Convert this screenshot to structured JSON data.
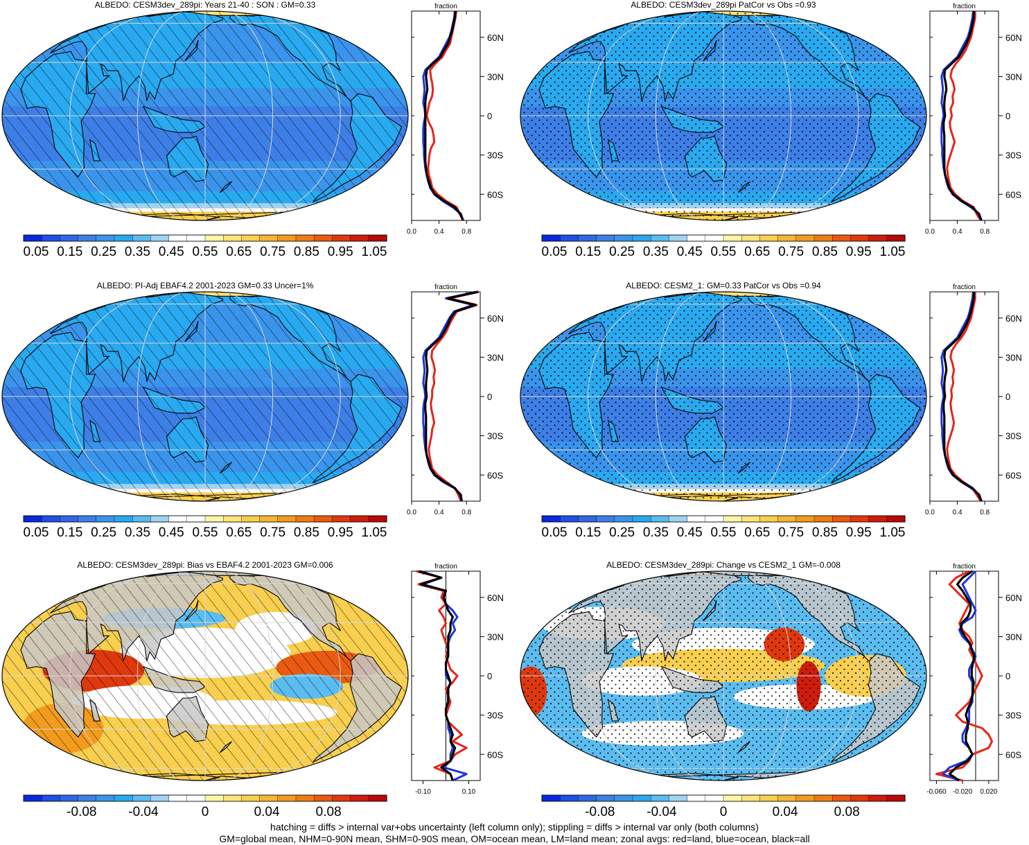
{
  "footer": {
    "line1": "hatching = diffs > internal var+obs uncertainty (left column only); stippling = diffs > internal var only (both columns)",
    "line2": "GM=global mean, NHM=0-90N mean, SHM=0-90S mean, OM=ocean mean, LM=land mean; zonal avgs: red=land, blue=ocean, black=all"
  },
  "colors": {
    "seq": [
      "#0a28e0",
      "#1f4fe6",
      "#3266e6",
      "#3d7fe6",
      "#3a94ec",
      "#29a9f0",
      "#5bbcf0",
      "#9ed3f2",
      "#ffffff",
      "#ffffff",
      "#fff5a8",
      "#fbe47a",
      "#f8cf4e",
      "#f4b634",
      "#f29b1e",
      "#ee7c14",
      "#ea5a10",
      "#e0380e",
      "#d01c0c",
      "#b80a08"
    ],
    "div": [
      "#0a28e0",
      "#1f4fe6",
      "#3266e6",
      "#3d7fe6",
      "#3a94ec",
      "#29a9f0",
      "#5bbcf0",
      "#9ed3f2",
      "#ffffff",
      "#ffffff",
      "#fff5a8",
      "#fbe47a",
      "#f8cf4e",
      "#f4b634",
      "#f29b1e",
      "#ee7c14",
      "#ea5a10",
      "#e0380e",
      "#d01c0c",
      "#b80a08"
    ],
    "land_line": "#e8231a",
    "ocean_line": "#1e33e0",
    "all_line": "#000000",
    "land_fill": "#c8c8c8"
  },
  "chart_data": [
    {
      "type": "heatmap",
      "title": "ALBEDO: CESM3dev_289pi: Years 21-40 : SON : GM=0.33",
      "pattern": "hatch",
      "colorbar_ticks": [
        "0.05",
        "0.15",
        "0.25",
        "0.35",
        "0.45",
        "0.55",
        "0.65",
        "0.75",
        "0.85",
        "0.95",
        "1.05"
      ],
      "profile": {
        "xlabel": "fraction",
        "xticks": [
          "0.0",
          "0.4",
          "0.8"
        ],
        "xlim": [
          0,
          1
        ],
        "ylim": [
          -80,
          80
        ],
        "yticks": [
          "60N",
          "30N",
          "0",
          "30S",
          "60S"
        ],
        "lat": [
          -80,
          -75,
          -70,
          -65,
          -60,
          -55,
          -50,
          -45,
          -40,
          -35,
          -30,
          -25,
          -20,
          -15,
          -10,
          -5,
          0,
          5,
          10,
          15,
          20,
          25,
          30,
          35,
          40,
          45,
          50,
          55,
          60,
          65,
          70,
          75,
          80
        ],
        "land": [
          0.75,
          0.7,
          0.66,
          0.5,
          0.38,
          0.3,
          0.28,
          0.25,
          0.24,
          0.25,
          0.26,
          0.28,
          0.33,
          0.32,
          0.3,
          0.25,
          0.22,
          0.24,
          0.26,
          0.3,
          0.31,
          0.3,
          0.28,
          0.27,
          0.35,
          0.45,
          0.5,
          0.56,
          0.58,
          0.6,
          0.62,
          0.64,
          0.65
        ],
        "ocean": [
          0.75,
          0.72,
          0.6,
          0.45,
          0.33,
          0.27,
          0.24,
          0.22,
          0.2,
          0.19,
          0.18,
          0.18,
          0.17,
          0.17,
          0.17,
          0.18,
          0.2,
          0.19,
          0.17,
          0.18,
          0.19,
          0.18,
          0.17,
          0.2,
          0.3,
          0.4,
          0.45,
          0.5,
          0.55,
          0.58,
          0.6,
          0.62,
          0.63
        ],
        "all": [
          0.75,
          0.71,
          0.63,
          0.47,
          0.34,
          0.28,
          0.25,
          0.22,
          0.21,
          0.2,
          0.2,
          0.2,
          0.2,
          0.2,
          0.2,
          0.2,
          0.2,
          0.2,
          0.2,
          0.21,
          0.23,
          0.22,
          0.21,
          0.22,
          0.31,
          0.42,
          0.47,
          0.53,
          0.56,
          0.59,
          0.61,
          0.63,
          0.64
        ]
      }
    },
    {
      "type": "heatmap",
      "title": "ALBEDO: CESM3dev_289pi PatCor vs Obs =0.93",
      "pattern": "stipple",
      "colorbar_ticks": [
        "0.05",
        "0.15",
        "0.25",
        "0.35",
        "0.45",
        "0.55",
        "0.65",
        "0.75",
        "0.85",
        "0.95",
        "1.05"
      ],
      "profile": {
        "xlabel": "fraction",
        "xticks": [
          "0.0",
          "0.4",
          "0.8"
        ],
        "xlim": [
          0,
          1
        ],
        "ylim": [
          -80,
          80
        ],
        "yticks": [
          "60N",
          "30N",
          "0",
          "30S",
          "60S"
        ],
        "lat": [
          -80,
          -75,
          -70,
          -65,
          -60,
          -55,
          -50,
          -45,
          -40,
          -35,
          -30,
          -25,
          -20,
          -15,
          -10,
          -5,
          0,
          5,
          10,
          15,
          20,
          25,
          30,
          35,
          40,
          45,
          50,
          55,
          60,
          65,
          70,
          75,
          80
        ],
        "land": [
          0.74,
          0.68,
          0.64,
          0.48,
          0.37,
          0.3,
          0.28,
          0.26,
          0.25,
          0.27,
          0.3,
          0.33,
          0.36,
          0.33,
          0.3,
          0.29,
          0.32,
          0.3,
          0.34,
          0.33,
          0.36,
          0.34,
          0.3,
          0.32,
          0.38,
          0.46,
          0.52,
          0.56,
          0.6,
          0.62,
          0.64,
          0.66,
          0.66
        ],
        "ocean": [
          0.75,
          0.72,
          0.6,
          0.45,
          0.33,
          0.27,
          0.24,
          0.22,
          0.2,
          0.19,
          0.18,
          0.18,
          0.17,
          0.17,
          0.17,
          0.18,
          0.2,
          0.19,
          0.17,
          0.18,
          0.19,
          0.18,
          0.17,
          0.2,
          0.3,
          0.4,
          0.45,
          0.5,
          0.55,
          0.58,
          0.6,
          0.62,
          0.63
        ],
        "all": [
          0.75,
          0.71,
          0.62,
          0.46,
          0.34,
          0.28,
          0.25,
          0.22,
          0.21,
          0.21,
          0.21,
          0.21,
          0.21,
          0.21,
          0.2,
          0.2,
          0.22,
          0.21,
          0.21,
          0.22,
          0.24,
          0.23,
          0.21,
          0.22,
          0.32,
          0.42,
          0.48,
          0.53,
          0.57,
          0.6,
          0.62,
          0.64,
          0.64
        ]
      }
    },
    {
      "type": "heatmap",
      "title": "ALBEDO: PI-Adj EBAF4.2 2001-2023 GM=0.33 Uncer=1%",
      "pattern": "hatch",
      "colorbar_ticks": [
        "0.05",
        "0.15",
        "0.25",
        "0.35",
        "0.45",
        "0.55",
        "0.65",
        "0.75",
        "0.85",
        "0.95",
        "1.05"
      ],
      "profile": {
        "xlabel": "fraction",
        "xticks": [
          "0.0",
          "0.4",
          "0.8"
        ],
        "xlim": [
          0,
          1
        ],
        "ylim": [
          -80,
          80
        ],
        "yticks": [
          "60N",
          "30N",
          "0",
          "30S",
          "60S"
        ],
        "lat": [
          -80,
          -75,
          -70,
          -65,
          -60,
          -55,
          -50,
          -45,
          -40,
          -35,
          -30,
          -25,
          -20,
          -15,
          -10,
          -5,
          0,
          5,
          10,
          15,
          20,
          25,
          30,
          35,
          40,
          45,
          50,
          55,
          60,
          65,
          70,
          75,
          80
        ],
        "land": [
          0.72,
          0.68,
          0.63,
          0.5,
          0.38,
          0.3,
          0.28,
          0.26,
          0.25,
          0.27,
          0.29,
          0.3,
          0.33,
          0.31,
          0.29,
          0.28,
          0.3,
          0.3,
          0.33,
          0.32,
          0.34,
          0.32,
          0.29,
          0.3,
          0.37,
          0.45,
          0.51,
          0.55,
          0.6,
          0.66,
          0.95,
          0.55,
          0.98
        ],
        "ocean": [
          0.73,
          0.72,
          0.62,
          0.45,
          0.33,
          0.27,
          0.24,
          0.22,
          0.2,
          0.19,
          0.18,
          0.18,
          0.17,
          0.17,
          0.17,
          0.18,
          0.2,
          0.19,
          0.17,
          0.18,
          0.19,
          0.18,
          0.17,
          0.2,
          0.3,
          0.4,
          0.45,
          0.5,
          0.55,
          0.62,
          0.9,
          0.5,
          0.95
        ],
        "all": [
          0.73,
          0.71,
          0.63,
          0.47,
          0.34,
          0.28,
          0.25,
          0.22,
          0.21,
          0.21,
          0.21,
          0.21,
          0.21,
          0.21,
          0.2,
          0.2,
          0.22,
          0.21,
          0.21,
          0.22,
          0.23,
          0.22,
          0.21,
          0.22,
          0.32,
          0.42,
          0.48,
          0.53,
          0.57,
          0.64,
          0.93,
          0.52,
          0.97
        ]
      }
    },
    {
      "type": "heatmap",
      "title": "ALBEDO: CESM2_1: GM=0.33 PatCor vs Obs =0.94",
      "pattern": "stipple",
      "colorbar_ticks": [
        "0.05",
        "0.15",
        "0.25",
        "0.35",
        "0.45",
        "0.55",
        "0.65",
        "0.75",
        "0.85",
        "0.95",
        "1.05"
      ],
      "profile": {
        "xlabel": "fraction",
        "xticks": [
          "0.0",
          "0.4",
          "0.8"
        ],
        "xlim": [
          0,
          1
        ],
        "ylim": [
          -80,
          80
        ],
        "yticks": [
          "60N",
          "30N",
          "0",
          "30S",
          "60S"
        ],
        "lat": [
          -80,
          -75,
          -70,
          -65,
          -60,
          -55,
          -50,
          -45,
          -40,
          -35,
          -30,
          -25,
          -20,
          -15,
          -10,
          -5,
          0,
          5,
          10,
          15,
          20,
          25,
          30,
          35,
          40,
          45,
          50,
          55,
          60,
          65,
          70,
          75,
          80
        ],
        "land": [
          0.74,
          0.68,
          0.62,
          0.48,
          0.37,
          0.3,
          0.28,
          0.26,
          0.25,
          0.27,
          0.3,
          0.33,
          0.35,
          0.33,
          0.31,
          0.3,
          0.32,
          0.31,
          0.34,
          0.33,
          0.35,
          0.33,
          0.3,
          0.32,
          0.38,
          0.46,
          0.52,
          0.56,
          0.6,
          0.62,
          0.64,
          0.66,
          0.66
        ],
        "ocean": [
          0.75,
          0.72,
          0.6,
          0.45,
          0.33,
          0.27,
          0.24,
          0.22,
          0.2,
          0.19,
          0.18,
          0.18,
          0.17,
          0.17,
          0.17,
          0.18,
          0.2,
          0.19,
          0.17,
          0.18,
          0.19,
          0.18,
          0.17,
          0.2,
          0.3,
          0.4,
          0.45,
          0.5,
          0.55,
          0.58,
          0.6,
          0.62,
          0.63
        ],
        "all": [
          0.75,
          0.71,
          0.62,
          0.46,
          0.34,
          0.28,
          0.25,
          0.22,
          0.21,
          0.21,
          0.21,
          0.21,
          0.21,
          0.21,
          0.2,
          0.2,
          0.22,
          0.21,
          0.21,
          0.22,
          0.24,
          0.23,
          0.21,
          0.22,
          0.32,
          0.42,
          0.48,
          0.53,
          0.57,
          0.6,
          0.62,
          0.64,
          0.64
        ]
      }
    },
    {
      "type": "heatmap",
      "title": "ALBEDO: CESM3dev_289pi: Bias vs EBAF4.2 2001-2023  GM=0.006",
      "pattern": "hatch",
      "colorbar_ticks": [
        "-0.08",
        "-0.04",
        "0",
        "0.04",
        "0.08"
      ],
      "profile": {
        "xlabel": "fraction",
        "xticks": [
          "-0.10",
          "0.10"
        ],
        "xlim": [
          -0.15,
          0.15
        ],
        "ylim": [
          -80,
          80
        ],
        "yticks": [
          "60N",
          "30N",
          "0",
          "30S",
          "60S"
        ],
        "lat": [
          -80,
          -75,
          -70,
          -65,
          -60,
          -55,
          -50,
          -45,
          -40,
          -35,
          -30,
          -25,
          -20,
          -15,
          -10,
          -5,
          0,
          5,
          10,
          15,
          20,
          25,
          30,
          35,
          40,
          45,
          50,
          55,
          60,
          65,
          70,
          75,
          80
        ],
        "land": [
          0.03,
          0.02,
          -0.05,
          0.02,
          0.04,
          0.09,
          0.03,
          0.07,
          0.04,
          0.01,
          0.0,
          0.01,
          0.02,
          0.01,
          0.0,
          0.03,
          0.05,
          0.02,
          0.01,
          0.0,
          0.01,
          0.0,
          -0.01,
          -0.02,
          0.0,
          -0.01,
          -0.03,
          0.0,
          -0.02,
          -0.01,
          -0.12,
          -0.02,
          -0.13
        ],
        "ocean": [
          0.03,
          0.09,
          -0.01,
          0.02,
          0.02,
          0.03,
          0.02,
          0.02,
          0.01,
          0.01,
          0.0,
          0.0,
          0.01,
          0.01,
          0.01,
          0.02,
          0.0,
          0.0,
          0.0,
          0.01,
          0.01,
          0.01,
          0.02,
          0.04,
          0.03,
          0.05,
          0.03,
          0.0,
          -0.01,
          0.0,
          -0.1,
          -0.02,
          -0.11
        ],
        "all": [
          0.03,
          0.02,
          -0.02,
          0.02,
          0.03,
          0.04,
          0.02,
          0.03,
          0.02,
          0.01,
          0.0,
          0.0,
          0.01,
          0.01,
          0.01,
          0.02,
          0.01,
          0.0,
          0.0,
          0.01,
          0.01,
          0.01,
          0.01,
          0.02,
          0.02,
          0.03,
          0.01,
          0.0,
          -0.01,
          0.0,
          -0.11,
          -0.02,
          -0.12
        ]
      }
    },
    {
      "type": "heatmap",
      "title": "ALBEDO: CESM3dev_289pi: Change vs CESM2_1 GM=-0.008",
      "pattern": "stipple",
      "colorbar_ticks": [
        "-0.08",
        "-0.04",
        "0",
        "0.04",
        "0.08"
      ],
      "profile": {
        "xlabel": "fraction",
        "xticks": [
          "-0.060",
          "-0.020",
          "0.020"
        ],
        "xlim": [
          -0.07,
          0.035
        ],
        "ylim": [
          -80,
          80
        ],
        "yticks": [
          "60N",
          "30N",
          "0",
          "30S",
          "60S"
        ],
        "lat": [
          -80,
          -75,
          -70,
          -65,
          -60,
          -55,
          -50,
          -45,
          -40,
          -35,
          -30,
          -25,
          -20,
          -15,
          -10,
          -5,
          0,
          5,
          10,
          15,
          20,
          25,
          30,
          35,
          40,
          45,
          50,
          55,
          60,
          65,
          70,
          75,
          80
        ],
        "land": [
          -0.02,
          -0.06,
          -0.02,
          -0.01,
          -0.005,
          0.02,
          0.025,
          0.02,
          0.01,
          -0.02,
          -0.03,
          -0.02,
          -0.01,
          -0.005,
          0.0,
          0.005,
          0.01,
          0.005,
          0.0,
          -0.005,
          -0.01,
          -0.005,
          -0.01,
          -0.02,
          -0.025,
          -0.02,
          -0.015,
          -0.01,
          -0.02,
          -0.03,
          -0.04,
          -0.03,
          -0.01
        ],
        "ocean": [
          -0.025,
          -0.05,
          -0.04,
          -0.015,
          -0.005,
          -0.01,
          -0.02,
          -0.02,
          -0.015,
          -0.01,
          -0.01,
          -0.01,
          -0.005,
          -0.005,
          -0.005,
          -0.005,
          -0.01,
          -0.01,
          -0.005,
          0.0,
          -0.005,
          -0.01,
          -0.02,
          -0.025,
          -0.02,
          -0.005,
          0.0,
          -0.005,
          -0.01,
          -0.015,
          -0.02,
          -0.01,
          0.0
        ],
        "all": [
          -0.025,
          -0.04,
          -0.03,
          -0.012,
          -0.005,
          -0.01,
          -0.015,
          -0.015,
          -0.012,
          -0.012,
          -0.015,
          -0.012,
          -0.007,
          -0.005,
          -0.004,
          -0.003,
          -0.006,
          -0.006,
          -0.004,
          -0.002,
          -0.006,
          -0.009,
          -0.016,
          -0.022,
          -0.022,
          -0.012,
          -0.008,
          -0.008,
          -0.014,
          -0.02,
          -0.028,
          -0.02,
          -0.005
        ]
      }
    }
  ]
}
